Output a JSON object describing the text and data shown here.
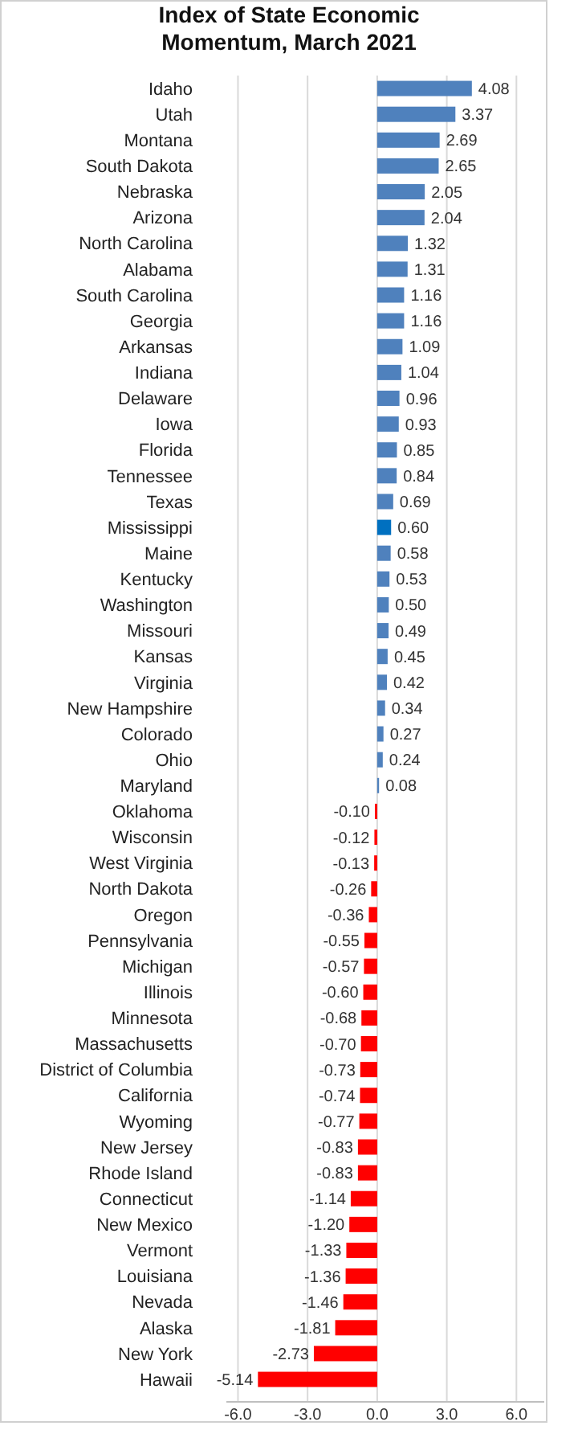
{
  "chart_data": {
    "type": "bar",
    "orientation": "horizontal",
    "title": "Index of State Economic Momentum, March 2021",
    "categories": [
      "Idaho",
      "Utah",
      "Montana",
      "South Dakota",
      "Nebraska",
      "Arizona",
      "North Carolina",
      "Alabama",
      "South Carolina",
      "Georgia",
      "Arkansas",
      "Indiana",
      "Delaware",
      "Iowa",
      "Florida",
      "Tennessee",
      "Texas",
      "Mississippi",
      "Maine",
      "Kentucky",
      "Washington",
      "Missouri",
      "Kansas",
      "Virginia",
      "New Hampshire",
      "Colorado",
      "Ohio",
      "Maryland",
      "Oklahoma",
      "Wisconsin",
      "West Virginia",
      "North Dakota",
      "Oregon",
      "Pennsylvania",
      "Michigan",
      "Illinois",
      "Minnesota",
      "Massachusetts",
      "District of Columbia",
      "California",
      "Wyoming",
      "New Jersey",
      "Rhode Island",
      "Connecticut",
      "New Mexico",
      "Vermont",
      "Louisiana",
      "Nevada",
      "Alaska",
      "New York",
      "Hawaii"
    ],
    "values": [
      4.08,
      3.37,
      2.69,
      2.65,
      2.05,
      2.04,
      1.32,
      1.31,
      1.16,
      1.16,
      1.09,
      1.04,
      0.96,
      0.93,
      0.85,
      0.84,
      0.69,
      0.6,
      0.58,
      0.53,
      0.5,
      0.49,
      0.45,
      0.42,
      0.34,
      0.27,
      0.24,
      0.08,
      -0.1,
      -0.12,
      -0.13,
      -0.26,
      -0.36,
      -0.55,
      -0.57,
      -0.6,
      -0.68,
      -0.7,
      -0.73,
      -0.74,
      -0.77,
      -0.83,
      -0.83,
      -1.14,
      -1.2,
      -1.33,
      -1.36,
      -1.46,
      -1.81,
      -2.73,
      -5.14
    ],
    "value_labels": [
      "4.08",
      "3.37",
      "2.69",
      "2.65",
      "2.05",
      "2.04",
      "1.32",
      "1.31",
      "1.16",
      "1.16",
      "1.09",
      "1.04",
      "0.96",
      "0.93",
      "0.85",
      "0.84",
      "0.69",
      "0.60",
      "0.58",
      "0.53",
      "0.50",
      "0.49",
      "0.45",
      "0.42",
      "0.34",
      "0.27",
      "0.24",
      "0.08",
      "-0.10",
      "-0.12",
      "-0.13",
      "-0.26",
      "-0.36",
      "-0.55",
      "-0.57",
      "-0.60",
      "-0.68",
      "-0.70",
      "-0.73",
      "-0.74",
      "-0.77",
      "-0.83",
      "-0.83",
      "-1.14",
      "-1.20",
      "-1.33",
      "-1.36",
      "-1.46",
      "-1.81",
      "-2.73",
      "-5.14"
    ],
    "colors": [
      "#4f81bd",
      "#4f81bd",
      "#4f81bd",
      "#4f81bd",
      "#4f81bd",
      "#4f81bd",
      "#4f81bd",
      "#4f81bd",
      "#4f81bd",
      "#4f81bd",
      "#4f81bd",
      "#4f81bd",
      "#4f81bd",
      "#4f81bd",
      "#4f81bd",
      "#4f81bd",
      "#4f81bd",
      "#0070c0",
      "#4f81bd",
      "#4f81bd",
      "#4f81bd",
      "#4f81bd",
      "#4f81bd",
      "#4f81bd",
      "#4f81bd",
      "#4f81bd",
      "#4f81bd",
      "#4f81bd",
      "#ff0000",
      "#ff0000",
      "#ff0000",
      "#ff0000",
      "#ff0000",
      "#ff0000",
      "#ff0000",
      "#ff0000",
      "#ff0000",
      "#ff0000",
      "#ff0000",
      "#ff0000",
      "#ff0000",
      "#ff0000",
      "#ff0000",
      "#ff0000",
      "#ff0000",
      "#ff0000",
      "#ff0000",
      "#ff0000",
      "#ff0000",
      "#ff0000",
      "#ff0000"
    ],
    "xlim": [
      -6.5,
      7.2
    ],
    "xticks": [
      {
        "value": -6,
        "label": "-6.0"
      },
      {
        "value": -3,
        "label": "-3.0"
      },
      {
        "value": 0,
        "label": "0.0"
      },
      {
        "value": 3,
        "label": "3.0"
      },
      {
        "value": 6,
        "label": "6.0"
      }
    ],
    "grid": "x"
  }
}
